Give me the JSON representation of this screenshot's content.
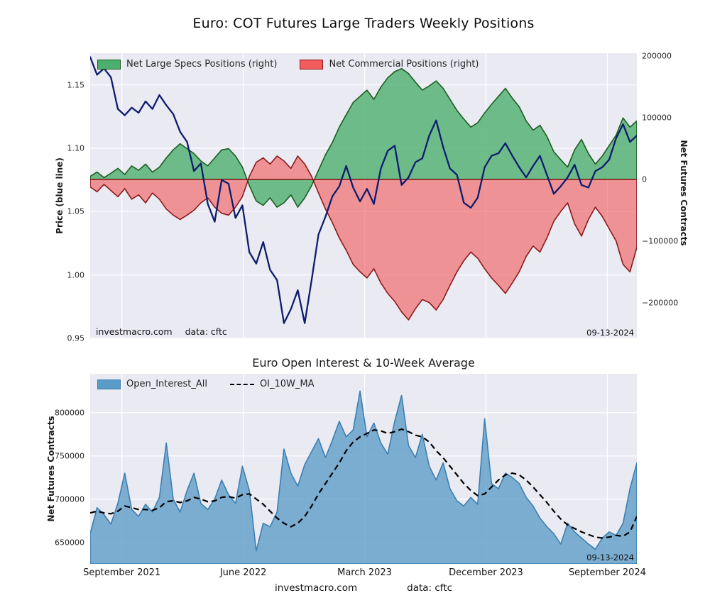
{
  "figure": {
    "bg": "#ffffff",
    "axes_bg": "#eaeaf2",
    "grid_color": "#ffffff"
  },
  "footer": {
    "left": "investmacro.com",
    "right": "data: cftc"
  },
  "chart_data": [
    {
      "type": "area",
      "title": "Euro: COT Futures Large Traders Weekly Positions",
      "ylabel_left": "Price (blue line)",
      "ylabel_right": "Net Futures Contracts",
      "x_range": "September 2021 to September 2024, weekly",
      "left_ylim": [
        0.95,
        1.175
      ],
      "right_ylim": [
        -258000,
        205000
      ],
      "left_yticks": {
        "values": [
          1.15,
          1.1,
          1.05,
          1.0,
          0.95
        ],
        "labels": [
          "1.15",
          "1.10",
          "1.05",
          "1.00",
          "0.95"
        ]
      },
      "right_yticks": {
        "values": [
          200000,
          100000,
          0,
          -100000,
          -200000
        ],
        "labels": [
          "200000",
          "100000",
          "0",
          "−100000",
          "−200000"
        ]
      },
      "x_ticks": {
        "fractions": [
          0.058,
          0.28,
          0.502,
          0.724,
          0.946
        ],
        "labels": [
          "September 2021",
          "June 2022",
          "March 2023",
          "December 2023",
          "September 2024"
        ],
        "visible": false
      },
      "legend": [
        {
          "label": "Net Large Specs Positions (right)",
          "fill": "#4caf6e",
          "edge": "#1b5e20"
        },
        {
          "label": "Net Commercial Positions (right)",
          "fill": "#f25c5c",
          "edge": "#8b1a1a"
        }
      ],
      "price_color": "#0d1c6e",
      "annotations": {
        "source": "investmacro.com",
        "data_source": "data: cftc",
        "date": "09-13-2024"
      },
      "series": {
        "price": [
          1.172,
          1.158,
          1.163,
          1.156,
          1.131,
          1.126,
          1.132,
          1.128,
          1.137,
          1.131,
          1.142,
          1.134,
          1.127,
          1.113,
          1.105,
          1.082,
          1.088,
          1.056,
          1.042,
          1.075,
          1.072,
          1.045,
          1.055,
          1.018,
          1.009,
          1.026,
          1.004,
          0.996,
          0.962,
          0.973,
          0.988,
          0.962,
          0.996,
          1.032,
          1.046,
          1.062,
          1.07,
          1.086,
          1.069,
          1.058,
          1.068,
          1.056,
          1.084,
          1.098,
          1.102,
          1.071,
          1.077,
          1.089,
          1.092,
          1.11,
          1.122,
          1.101,
          1.084,
          1.079,
          1.057,
          1.053,
          1.061,
          1.085,
          1.094,
          1.096,
          1.104,
          1.094,
          1.085,
          1.077,
          1.086,
          1.094,
          1.079,
          1.064,
          1.07,
          1.077,
          1.087,
          1.071,
          1.069,
          1.082,
          1.085,
          1.091,
          1.108,
          1.119,
          1.105,
          1.11
        ],
        "net_large_specs": [
          5000,
          12000,
          3000,
          10000,
          18000,
          8000,
          22000,
          15000,
          25000,
          12000,
          20000,
          35000,
          48000,
          58000,
          50000,
          42000,
          30000,
          22000,
          35000,
          48000,
          50000,
          38000,
          20000,
          -10000,
          -35000,
          -42000,
          -30000,
          -45000,
          -38000,
          -25000,
          -45000,
          -30000,
          -10000,
          15000,
          40000,
          60000,
          85000,
          105000,
          125000,
          135000,
          145000,
          130000,
          150000,
          165000,
          175000,
          180000,
          172000,
          158000,
          145000,
          152000,
          160000,
          148000,
          130000,
          112000,
          98000,
          85000,
          92000,
          108000,
          122000,
          135000,
          148000,
          132000,
          118000,
          95000,
          80000,
          88000,
          70000,
          45000,
          32000,
          20000,
          48000,
          65000,
          42000,
          25000,
          38000,
          55000,
          72000,
          100000,
          85000,
          95000
        ],
        "net_commercials": [
          -12000,
          -20000,
          -8000,
          -18000,
          -28000,
          -15000,
          -32000,
          -25000,
          -38000,
          -22000,
          -32000,
          -48000,
          -58000,
          -65000,
          -58000,
          -50000,
          -38000,
          -30000,
          -45000,
          -55000,
          -58000,
          -45000,
          -28000,
          5000,
          28000,
          35000,
          25000,
          38000,
          30000,
          18000,
          38000,
          25000,
          5000,
          -22000,
          -48000,
          -70000,
          -95000,
          -115000,
          -138000,
          -150000,
          -160000,
          -145000,
          -168000,
          -185000,
          -198000,
          -215000,
          -228000,
          -210000,
          -195000,
          -200000,
          -212000,
          -195000,
          -172000,
          -150000,
          -132000,
          -118000,
          -128000,
          -145000,
          -160000,
          -172000,
          -185000,
          -168000,
          -150000,
          -125000,
          -108000,
          -118000,
          -95000,
          -68000,
          -52000,
          -38000,
          -72000,
          -92000,
          -65000,
          -45000,
          -60000,
          -80000,
          -100000,
          -138000,
          -150000,
          -110000
        ]
      }
    },
    {
      "type": "area",
      "title": "Euro Open Interest & 10-Week Average",
      "ylabel": "Net Futures Contracts",
      "ylim": [
        625000,
        845000
      ],
      "yticks": {
        "values": [
          800000,
          750000,
          700000,
          650000
        ],
        "labels": [
          "800000",
          "750000",
          "700000",
          "650000"
        ]
      },
      "x_ticks": {
        "fractions": [
          0.058,
          0.28,
          0.502,
          0.724,
          0.946
        ],
        "labels": [
          "September 2021",
          "June 2022",
          "March 2023",
          "December 2023",
          "September 2024"
        ],
        "visible": true
      },
      "legend": [
        {
          "label": "Open_Interest_All",
          "fill": "#5b9bc8",
          "edge": "#3c7fb0"
        },
        {
          "label": "OI_10W_MA",
          "style": "dashed",
          "color": "#000000"
        }
      ],
      "annotations": {
        "date": "09-13-2024"
      },
      "series": {
        "open_interest": [
          660000,
          690000,
          682000,
          671000,
          695000,
          730000,
          688000,
          680000,
          694000,
          685000,
          702000,
          765000,
          700000,
          685000,
          710000,
          730000,
          695000,
          688000,
          700000,
          722000,
          705000,
          695000,
          738000,
          710000,
          640000,
          672000,
          668000,
          685000,
          758000,
          730000,
          715000,
          740000,
          755000,
          770000,
          748000,
          768000,
          790000,
          772000,
          780000,
          825000,
          772000,
          788000,
          765000,
          752000,
          790000,
          820000,
          762000,
          748000,
          775000,
          738000,
          722000,
          742000,
          712000,
          698000,
          692000,
          702000,
          694000,
          793000,
          718000,
          712000,
          730000,
          725000,
          718000,
          702000,
          692000,
          678000,
          668000,
          660000,
          648000,
          672000,
          662000,
          655000,
          648000,
          642000,
          655000,
          662000,
          658000,
          672000,
          712000,
          742000
        ],
        "oi_10w_ma": [
          684000,
          686000,
          684000,
          683000,
          686000,
          692000,
          690000,
          688000,
          688000,
          687000,
          690000,
          697000,
          698000,
          696000,
          698000,
          702000,
          700000,
          697000,
          698000,
          702000,
          703000,
          701000,
          705000,
          706000,
          700000,
          694000,
          686000,
          678000,
          672000,
          668000,
          672000,
          680000,
          692000,
          706000,
          718000,
          730000,
          742000,
          756000,
          766000,
          772000,
          776000,
          780000,
          779000,
          776000,
          778000,
          781000,
          778000,
          774000,
          772000,
          766000,
          756000,
          748000,
          738000,
          728000,
          718000,
          710000,
          704000,
          706000,
          714000,
          722000,
          728000,
          730000,
          728000,
          722000,
          714000,
          705000,
          696000,
          686000,
          677000,
          670000,
          666000,
          662000,
          659000,
          656000,
          655000,
          656000,
          658000,
          657000,
          662000,
          680000
        ]
      }
    }
  ]
}
